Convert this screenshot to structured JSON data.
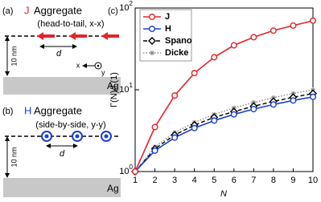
{
  "panel_a": {
    "tag": "(a)",
    "kind": "J",
    "title": "Aggregate",
    "subtitle": "(head-to-tail, x-x)",
    "spacing": "d",
    "height": "10 nm",
    "axis_x": "x",
    "axis_y": "y",
    "substrate": "Ag"
  },
  "panel_b": {
    "tag": "(b)",
    "kind": "H",
    "title": "Aggregate",
    "subtitle": "(side-by-side, y-y)",
    "spacing": "d",
    "height": "10 nm",
    "substrate": "Ag"
  },
  "chart_data": {
    "type": "line",
    "tag": "(c)",
    "y_label": "Γ(N)/Γ(1)",
    "x_label": "N",
    "x": [
      1,
      2,
      3,
      4,
      5,
      6,
      7,
      8,
      9,
      10
    ],
    "xlim": [
      1,
      10
    ],
    "xticks": [
      1,
      2,
      3,
      4,
      5,
      6,
      7,
      8,
      9,
      10
    ],
    "ylim": [
      1,
      100
    ],
    "log_y": true,
    "yticks": [
      {
        "value": 1,
        "base": "10",
        "exponent": "0"
      },
      {
        "value": 10,
        "base": "10",
        "exponent": "1"
      },
      {
        "value": 100,
        "base": "10",
        "exponent": "2"
      }
    ],
    "legend": "upper left",
    "series": [
      {
        "name": "J",
        "color": "#e3232b",
        "line_style": "solid",
        "marker": "circle",
        "values": [
          1,
          3.5,
          8.5,
          16,
          25,
          35,
          44,
          53,
          61,
          70
        ]
      },
      {
        "name": "H",
        "color": "#1b3fd6",
        "line_style": "solid",
        "marker": "circle",
        "values": [
          1,
          1.8,
          2.6,
          3.4,
          4.2,
          5.0,
          5.8,
          6.6,
          7.4,
          8.2
        ]
      },
      {
        "name": "Spano",
        "color": "#000000",
        "line_style": "dashed",
        "marker": "diamond",
        "values": [
          1,
          1.9,
          2.8,
          3.7,
          4.6,
          5.4,
          6.3,
          7.2,
          8.1,
          9.0
        ]
      },
      {
        "name": "Dicke",
        "color": "#888888",
        "line_style": "dotted",
        "marker": "asterisk",
        "values": [
          1,
          2,
          3,
          4,
          5,
          6,
          7,
          8,
          9,
          10
        ]
      }
    ]
  }
}
